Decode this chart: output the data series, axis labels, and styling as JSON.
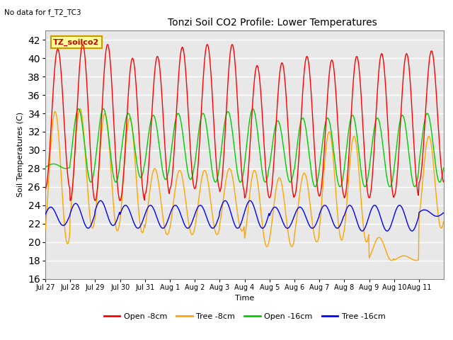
{
  "title": "Tonzi Soil CO2 Profile: Lower Temperatures",
  "top_left_text": "No data for f_T2_TC3",
  "xlabel": "Time",
  "ylabel": "Soil Temperatures (C)",
  "ylim": [
    16,
    43
  ],
  "yticks": [
    16,
    18,
    20,
    22,
    24,
    26,
    28,
    30,
    32,
    34,
    36,
    38,
    40,
    42
  ],
  "fig_bg_color": "#ffffff",
  "plot_bg_color": "#e8e8e8",
  "legend_labels": [
    "Open -8cm",
    "Tree -8cm",
    "Open -16cm",
    "Tree -16cm"
  ],
  "legend_colors": [
    "#ff0000",
    "#ffa500",
    "#00cc00",
    "#0000ff"
  ],
  "annotation_box": "TZ_soilco2",
  "annotation_box_color": "#ffff99",
  "annotation_border_color": "#cc9900",
  "xtick_labels": [
    "Jul 27",
    "Jul 28",
    "Jul 29",
    "Jul 30",
    "Jul 31",
    "Aug 1",
    "Aug 2",
    "Aug 3",
    "Aug 4",
    "Aug 5",
    "Aug 6",
    "Aug 7",
    "Aug 8",
    "Aug 9",
    "Aug 10",
    "Aug 11"
  ],
  "num_points_per_day": 48,
  "open_8cm_day_max": [
    41.0,
    41.5,
    41.5,
    40.0,
    40.2,
    41.2,
    41.5,
    41.5,
    39.2,
    39.5,
    40.2,
    39.8,
    40.2,
    40.5,
    40.5,
    40.8
  ],
  "open_8cm_day_min": [
    25.8,
    24.5,
    24.5,
    24.5,
    25.2,
    25.8,
    25.8,
    25.5,
    24.8,
    24.8,
    25.0,
    25.0,
    24.8,
    24.8,
    25.0,
    26.5
  ],
  "tree_8cm_day_max": [
    34.2,
    34.5,
    34.0,
    33.5,
    28.0,
    27.8,
    27.8,
    28.0,
    27.8,
    27.0,
    27.5,
    32.0,
    31.5,
    20.5,
    18.5,
    31.5
  ],
  "tree_8cm_day_min": [
    19.8,
    21.5,
    21.2,
    21.0,
    20.8,
    20.8,
    20.8,
    21.2,
    19.5,
    19.5,
    20.0,
    20.2,
    20.0,
    18.0,
    18.0,
    21.5
  ],
  "open_16cm_day_max": [
    28.5,
    34.5,
    34.5,
    34.0,
    33.8,
    34.0,
    34.0,
    34.2,
    34.5,
    33.2,
    33.5,
    33.5,
    33.8,
    33.5,
    33.8,
    34.0
  ],
  "open_16cm_day_min": [
    28.0,
    26.5,
    26.5,
    27.0,
    26.8,
    26.8,
    26.5,
    26.5,
    26.5,
    26.5,
    26.0,
    26.0,
    26.0,
    26.0,
    26.0,
    26.5
  ],
  "tree_16cm_day_max": [
    23.8,
    24.2,
    24.5,
    24.0,
    24.0,
    24.0,
    24.0,
    24.5,
    24.5,
    23.8,
    23.8,
    24.0,
    24.0,
    24.0,
    24.0,
    23.5
  ],
  "tree_16cm_day_min": [
    21.8,
    21.5,
    21.8,
    21.5,
    21.5,
    21.5,
    21.5,
    21.5,
    21.5,
    21.5,
    21.5,
    21.5,
    21.2,
    21.2,
    21.2,
    22.8
  ],
  "open_8cm_phase": -1.5707963,
  "tree_8cm_phase": -0.9,
  "open_16cm_phase": -0.5,
  "tree_16cm_phase": 0.2
}
